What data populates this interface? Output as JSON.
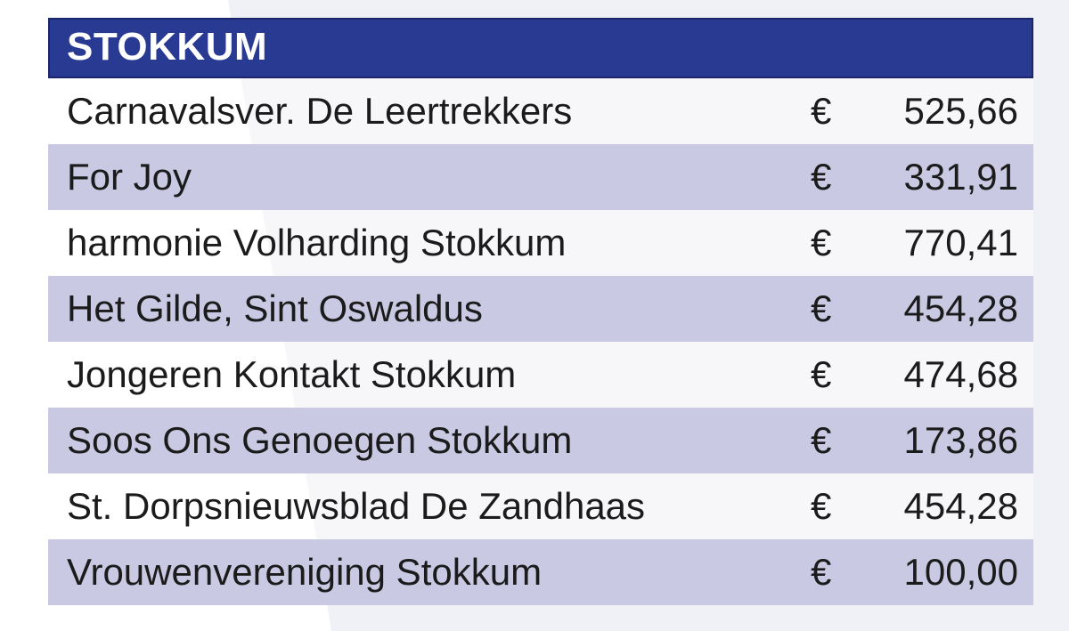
{
  "theme": {
    "page-bg": "#f0f1f6",
    "swoosh": "#ffffff",
    "header-bg": "#293a92",
    "header-border": "#1b2569",
    "header-text": "#ffffff",
    "row-alt-bg": "#c9c9e3",
    "row-text": "#1b1b1b"
  },
  "table": {
    "header": {
      "title": "STOKKUM"
    },
    "currency_symbol": "€",
    "rows": [
      {
        "name": "Carnavalsver. De Leertrekkers",
        "amount": "525,66"
      },
      {
        "name": "For Joy",
        "amount": "331,91"
      },
      {
        "name": "harmonie Volharding Stokkum",
        "amount": "770,41"
      },
      {
        "name": "Het Gilde, Sint Oswaldus",
        "amount": "454,28"
      },
      {
        "name": "Jongeren Kontakt Stokkum",
        "amount": "474,68"
      },
      {
        "name": "Soos Ons Genoegen Stokkum",
        "amount": "173,86"
      },
      {
        "name": "St. Dorpsnieuwsblad De Zandhaas",
        "amount": "454,28"
      },
      {
        "name": "Vrouwenvereniging Stokkum",
        "amount": "100,00"
      }
    ]
  }
}
